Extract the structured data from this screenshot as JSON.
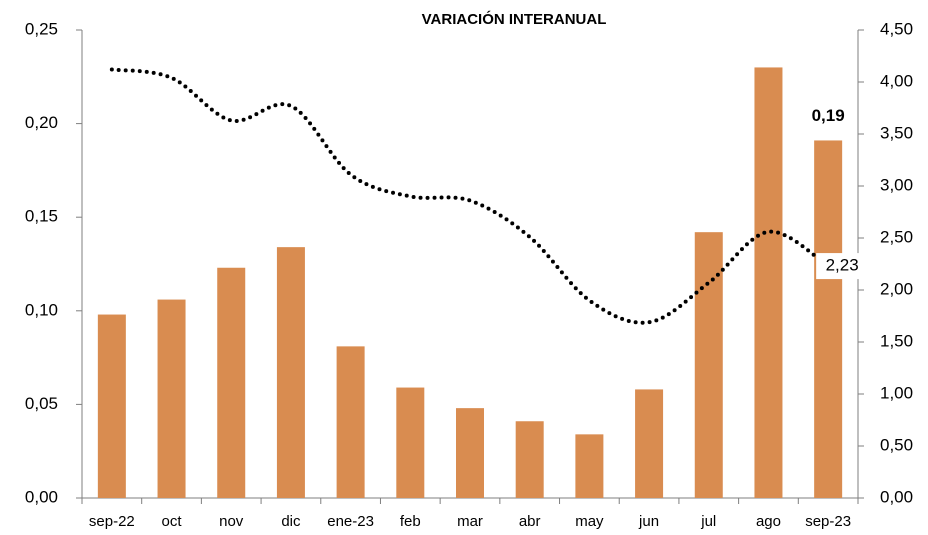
{
  "chart_data": {
    "type": "bar",
    "title": "VARIACIÓN INTERANUAL",
    "categories": [
      "sep-22",
      "oct",
      "nov",
      "dic",
      "ene-23",
      "feb",
      "mar",
      "abr",
      "may",
      "jun",
      "jul",
      "ago",
      "sep-23"
    ],
    "series": [
      {
        "type": "bar",
        "color": "#d98c50",
        "values": [
          0.098,
          0.106,
          0.123,
          0.134,
          0.081,
          0.059,
          0.048,
          0.041,
          0.034,
          0.058,
          0.142,
          0.23,
          0.191
        ],
        "value_labels": [
          null,
          null,
          null,
          null,
          null,
          null,
          null,
          null,
          null,
          null,
          null,
          null,
          "0,19"
        ]
      },
      {
        "type": "line",
        "axis": "y2",
        "color": "#000000",
        "style": "dotted",
        "values": [
          4.12,
          4.04,
          3.63,
          3.77,
          3.11,
          2.9,
          2.86,
          2.51,
          1.9,
          1.69,
          2.07,
          2.56,
          2.23
        ],
        "value_labels": [
          null,
          null,
          null,
          null,
          null,
          null,
          null,
          null,
          null,
          null,
          null,
          null,
          "2,23"
        ]
      }
    ],
    "ylim": [
      0,
      0.25
    ],
    "yticks": [
      {
        "value": 0,
        "label": "0,00"
      },
      {
        "value": 0.05,
        "label": "0,05"
      },
      {
        "value": 0.1,
        "label": "0,10"
      },
      {
        "value": 0.15,
        "label": "0,15"
      },
      {
        "value": 0.2,
        "label": "0,20"
      },
      {
        "value": 0.25,
        "label": "0,25"
      }
    ],
    "y2lim": [
      0,
      4.5
    ],
    "y2ticks": [
      {
        "value": 0,
        "label": "0,00"
      },
      {
        "value": 0.5,
        "label": "0,50"
      },
      {
        "value": 1,
        "label": "1,00"
      },
      {
        "value": 1.5,
        "label": "1,50"
      },
      {
        "value": 2,
        "label": "2,00"
      },
      {
        "value": 2.5,
        "label": "2,50"
      },
      {
        "value": 3,
        "label": "3,00"
      },
      {
        "value": 3.5,
        "label": "3,50"
      },
      {
        "value": 4,
        "label": "4,00"
      },
      {
        "value": 4.5,
        "label": "4,50"
      }
    ],
    "grid": false
  }
}
